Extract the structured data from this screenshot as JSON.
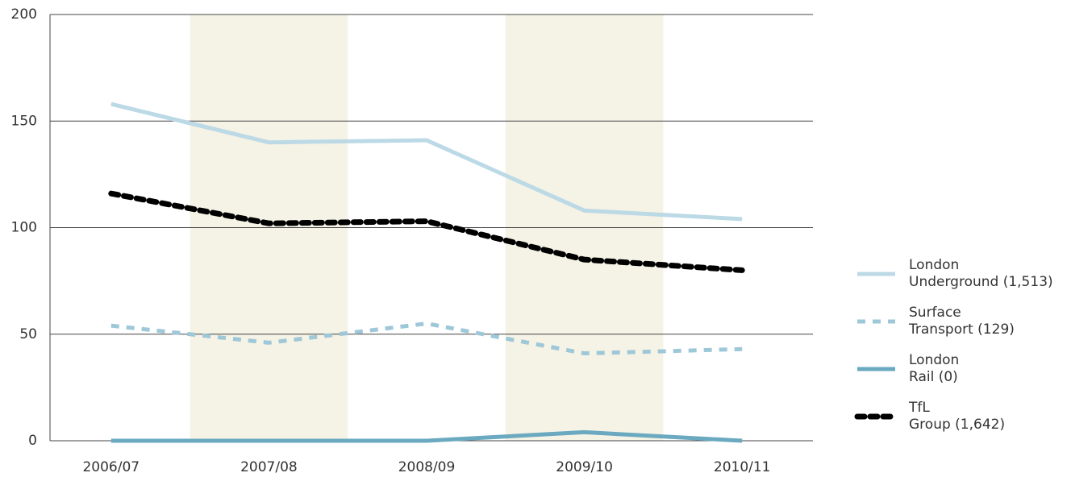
{
  "chart_data": {
    "type": "line",
    "categories": [
      "2006/07",
      "2007/08",
      "2008/09",
      "2009/10",
      "2010/11"
    ],
    "series": [
      {
        "name": "London Underground (1,513)",
        "color": "#bcd9e6",
        "style": "solid",
        "values": [
          158,
          140,
          141,
          108,
          104
        ]
      },
      {
        "name": "Surface Transport (129)",
        "color": "#9ec8d8",
        "style": "dashed",
        "values": [
          54,
          46,
          55,
          41,
          43
        ]
      },
      {
        "name": "London Rail (0)",
        "color": "#6aa9c0",
        "style": "solid",
        "values": [
          0,
          0,
          0,
          4,
          0
        ]
      },
      {
        "name": "TfL Group (1,642)",
        "color": "#000000",
        "style": "dotted",
        "values": [
          116,
          102,
          103,
          85,
          80
        ]
      }
    ],
    "ylim": [
      0,
      200
    ],
    "yticks": [
      0,
      50,
      100,
      150,
      200
    ],
    "grid": true,
    "band_shading": "#f5f2e6"
  }
}
